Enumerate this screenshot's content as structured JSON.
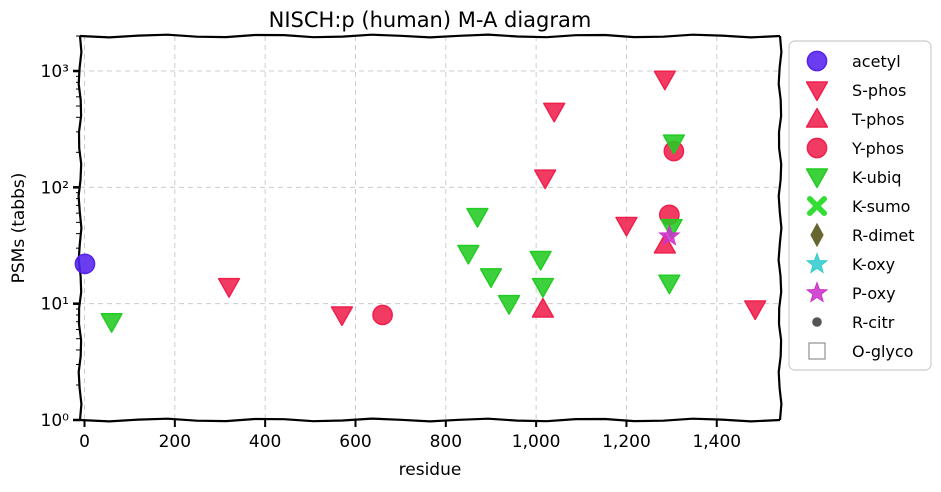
{
  "chart_data": {
    "type": "scatter",
    "title": "NISCH:p (human) M-A diagram",
    "xlabel": "residue",
    "ylabel": "PSMs (tabbs)",
    "x_scale": "linear",
    "y_scale": "log",
    "xlim": [
      -10,
      1540
    ],
    "ylim": [
      1,
      2000
    ],
    "x_ticks": [
      0,
      200,
      400,
      600,
      800,
      1000,
      1200,
      1400
    ],
    "x_tick_labels": [
      "0",
      "200",
      "400",
      "600",
      "800",
      "1,000",
      "1,200",
      "1,400"
    ],
    "y_ticks": [
      1,
      10,
      100,
      1000
    ],
    "y_tick_labels": [
      "10⁰",
      "10¹",
      "10²",
      "10³"
    ],
    "grid": true,
    "legend_position": "outside-right",
    "series": [
      {
        "name": "acetyl",
        "marker": "circle",
        "color": "#5522ee",
        "points": [
          [
            1,
            22
          ]
        ]
      },
      {
        "name": "S-phos",
        "marker": "triangle-down",
        "color": "#f0204d",
        "points": [
          [
            320,
            14
          ],
          [
            570,
            8
          ],
          [
            1020,
            120
          ],
          [
            1040,
            450
          ],
          [
            1200,
            47
          ],
          [
            1285,
            850
          ],
          [
            1485,
            9
          ]
        ]
      },
      {
        "name": "T-phos",
        "marker": "triangle-up",
        "color": "#f0204d",
        "points": [
          [
            1015,
            9
          ],
          [
            1285,
            32
          ]
        ]
      },
      {
        "name": "Y-phos",
        "marker": "circle",
        "color": "#f0204d",
        "points": [
          [
            660,
            8
          ],
          [
            1295,
            58
          ],
          [
            1305,
            205
          ]
        ]
      },
      {
        "name": "K-ubiq",
        "marker": "triangle-down",
        "color": "#22cc22",
        "points": [
          [
            60,
            7
          ],
          [
            850,
            27
          ],
          [
            870,
            56
          ],
          [
            900,
            17
          ],
          [
            940,
            10
          ],
          [
            1010,
            24
          ],
          [
            1015,
            14
          ],
          [
            1295,
            15
          ],
          [
            1300,
            45
          ],
          [
            1305,
            240
          ]
        ]
      },
      {
        "name": "K-sumo",
        "marker": "x",
        "color": "#33dd33",
        "points": []
      },
      {
        "name": "R-dimet",
        "marker": "diamond",
        "color": "#666633",
        "points": []
      },
      {
        "name": "K-oxy",
        "marker": "star",
        "color": "#33cccc",
        "points": []
      },
      {
        "name": "P-oxy",
        "marker": "star",
        "color": "#cc33cc",
        "points": [
          [
            1295,
            38
          ]
        ]
      },
      {
        "name": "R-citr",
        "marker": "dot",
        "color": "#555555",
        "points": []
      },
      {
        "name": "O-glyco",
        "marker": "square-open",
        "color": "#999999",
        "points": []
      }
    ]
  }
}
